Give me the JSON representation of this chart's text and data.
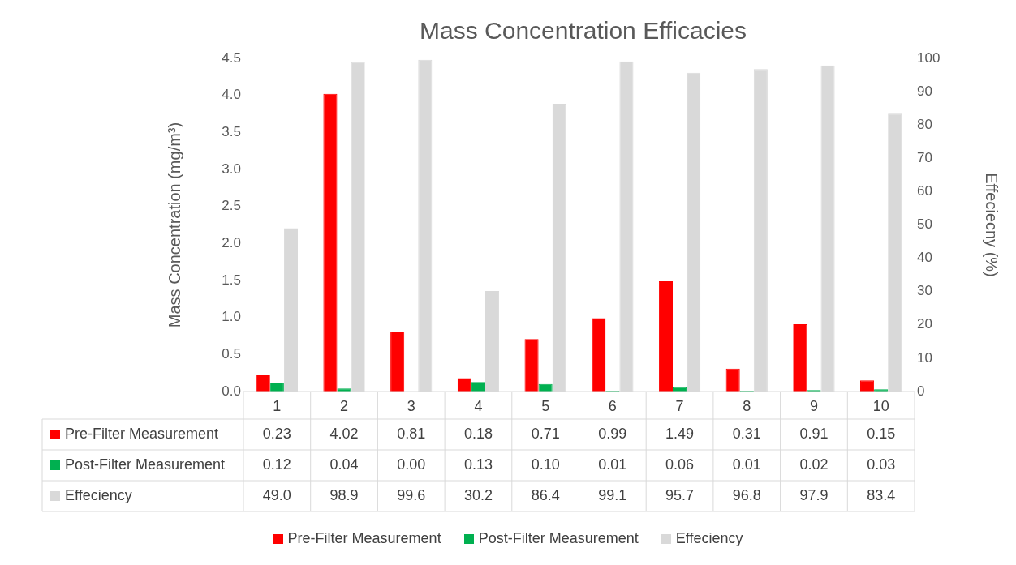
{
  "chart_data": {
    "type": "bar",
    "title": "Mass Concentration Efficacies",
    "ylabel": "Mass Concentration (mg/m³)",
    "y2label": "Effeciecny (%)",
    "categories": [
      "1",
      "2",
      "3",
      "4",
      "5",
      "6",
      "7",
      "8",
      "9",
      "10"
    ],
    "series": [
      {
        "name": "Pre-Filter Measurement",
        "color": "#ff0000",
        "values": [
          0.23,
          4.02,
          0.81,
          0.18,
          0.71,
          0.99,
          1.49,
          0.31,
          0.91,
          0.15
        ],
        "value_labels": [
          "0.23",
          "4.02",
          "0.81",
          "0.18",
          "0.71",
          "0.99",
          "1.49",
          "0.31",
          "0.91",
          "0.15"
        ]
      },
      {
        "name": "Post-Filter Measurement",
        "color": "#00b050",
        "values": [
          0.12,
          0.04,
          0.0,
          0.13,
          0.1,
          0.01,
          0.06,
          0.01,
          0.02,
          0.03
        ],
        "value_labels": [
          "0.12",
          "0.04",
          "0.00",
          "0.13",
          "0.10",
          "0.01",
          "0.06",
          "0.01",
          "0.02",
          "0.03"
        ]
      },
      {
        "name": "Effeciency",
        "color": "#d9d9d9",
        "axis": "y2",
        "values": [
          49.0,
          98.9,
          99.6,
          30.2,
          86.4,
          99.1,
          95.7,
          96.8,
          97.9,
          83.4
        ],
        "value_labels": [
          "49.0",
          "98.9",
          "99.6",
          "30.2",
          "86.4",
          "99.1",
          "95.7",
          "96.8",
          "97.9",
          "83.4"
        ]
      }
    ],
    "ylim": [
      0,
      4.5
    ],
    "yticks": [
      {
        "value": 0,
        "label": "0.0"
      },
      0.5,
      {
        "value": 1,
        "label": "1.0"
      },
      1.5,
      {
        "value": 2,
        "label": "2.0"
      },
      2.5,
      {
        "value": 3,
        "label": "3.0"
      },
      3.5,
      {
        "value": 4,
        "label": "4.0"
      },
      4.5
    ],
    "y2lim": [
      0,
      100
    ],
    "y2ticks": [
      0,
      10,
      20,
      30,
      40,
      50,
      60,
      70,
      80,
      90,
      100
    ],
    "grid": false,
    "legend": "bottom"
  }
}
